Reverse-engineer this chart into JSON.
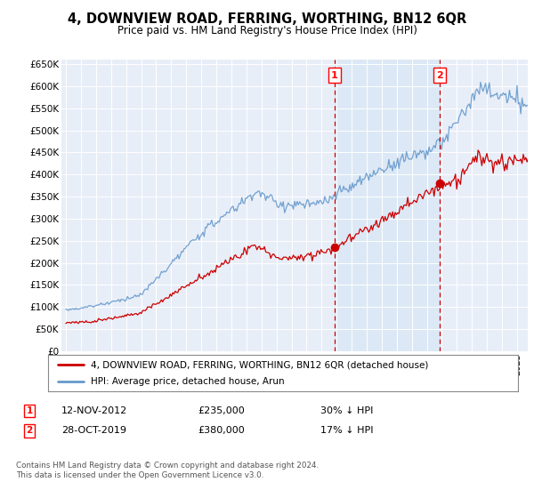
{
  "title": "4, DOWNVIEW ROAD, FERRING, WORTHING, BN12 6QR",
  "subtitle": "Price paid vs. HM Land Registry's House Price Index (HPI)",
  "legend_line1": "4, DOWNVIEW ROAD, FERRING, WORTHING, BN12 6QR (detached house)",
  "legend_line2": "HPI: Average price, detached house, Arun",
  "annotation1_label": "1",
  "annotation1_date": "12-NOV-2012",
  "annotation1_price": "£235,000",
  "annotation1_pct": "30% ↓ HPI",
  "annotation1_year": 2012.87,
  "annotation1_value": 235000,
  "annotation2_label": "2",
  "annotation2_date": "28-OCT-2019",
  "annotation2_price": "£380,000",
  "annotation2_pct": "17% ↓ HPI",
  "annotation2_year": 2019.83,
  "annotation2_value": 380000,
  "footer": "Contains HM Land Registry data © Crown copyright and database right 2024.\nThis data is licensed under the Open Government Licence v3.0.",
  "ylim": [
    0,
    660000
  ],
  "yticks": [
    0,
    50000,
    100000,
    150000,
    200000,
    250000,
    300000,
    350000,
    400000,
    450000,
    500000,
    550000,
    600000,
    650000
  ],
  "plot_bg": "#e8eef8",
  "red_color": "#cc0000",
  "blue_color": "#6699cc",
  "span_color": "#dce8f5"
}
